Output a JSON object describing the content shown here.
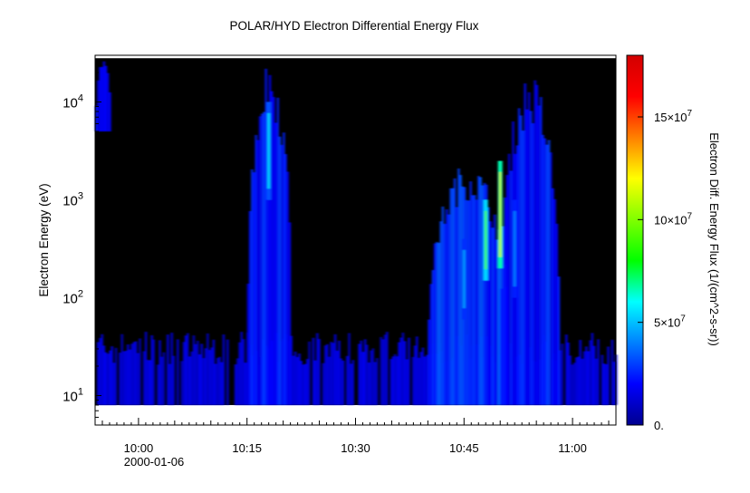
{
  "chart_data": {
    "type": "heatmap",
    "title": "POLAR/HYD  Electron Differential Energy Flux",
    "ylabel": "Electron Energy (eV)",
    "xlabel": "",
    "y_scale": "log",
    "ylim": [
      5,
      30000
    ],
    "data_ylim": [
      8,
      28000
    ],
    "x_range": [
      "09:54",
      "11:06"
    ],
    "x_ticks": [
      "10:00",
      "10:15",
      "10:30",
      "10:45",
      "11:00"
    ],
    "x_date_label": "2000-01-06",
    "y_ticks": [
      {
        "value": 10,
        "base": "10",
        "exp": "1"
      },
      {
        "value": 100,
        "base": "10",
        "exp": "2"
      },
      {
        "value": 1000,
        "base": "10",
        "exp": "3"
      },
      {
        "value": 10000,
        "base": "10",
        "exp": "4"
      }
    ],
    "background": "#000000",
    "colorbar": {
      "label": "Electron Diff. Energy Flux (1/(cm^2-s-sr))",
      "range": [
        0,
        180000000
      ],
      "ticks": [
        {
          "value": 0,
          "text": "0."
        },
        {
          "value": 50000000,
          "base": "5×10",
          "exp": "7"
        },
        {
          "value": 100000000,
          "base": "10×10",
          "exp": "7"
        },
        {
          "value": 150000000,
          "base": "15×10",
          "exp": "7"
        }
      ],
      "colors": [
        "#00008f",
        "#0000ff",
        "#0080ff",
        "#00ffff",
        "#00ff00",
        "#80ff00",
        "#ffff00",
        "#ff8000",
        "#ff0000",
        "#d20000"
      ]
    },
    "regions": [
      {
        "name": "early high-energy patch",
        "t_start": "09:54",
        "t_end": "09:56",
        "e_low": 5000,
        "e_high": 28000,
        "flux": 20000000
      },
      {
        "name": "low-energy band",
        "t_start": "09:54",
        "t_end": "11:06",
        "e_low": 8,
        "e_high": 45,
        "flux": 15000000
      },
      {
        "name": "burst 1",
        "t_start": "10:15",
        "t_end": "10:21",
        "e_low": 8,
        "e_high": 28000,
        "flux": 25000000
      },
      {
        "name": "burst 2",
        "t_start": "10:40",
        "t_end": "10:51",
        "e_low": 8,
        "e_high": 2500,
        "flux": 30000000
      },
      {
        "name": "burst 3",
        "t_start": "10:50",
        "t_end": "10:58",
        "e_low": 8,
        "e_high": 20000,
        "flux": 25000000
      }
    ],
    "peaks": [
      {
        "t": "10:18",
        "e_low": 1000,
        "e_high": 10000,
        "flux": 55000000
      },
      {
        "t": "10:48",
        "e_low": 150,
        "e_high": 1000,
        "flux": 90000000
      },
      {
        "t": "10:50",
        "e_low": 200,
        "e_high": 2500,
        "flux": 110000000
      },
      {
        "t": "10:45",
        "e_low": 60,
        "e_high": 400,
        "flux": 45000000
      },
      {
        "t": "10:52",
        "e_low": 100,
        "e_high": 1000,
        "flux": 40000000
      }
    ]
  }
}
